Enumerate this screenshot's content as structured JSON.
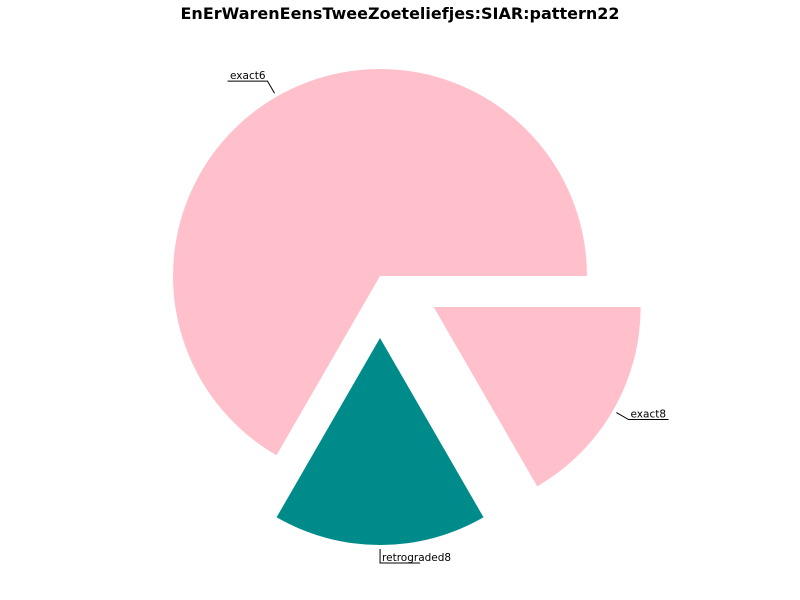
{
  "chart_data": {
    "type": "pie",
    "title": "EnErWarenEensTweeZoeteliefjes:SIAR:pattern22",
    "slices": [
      {
        "label": "exact6",
        "value": 66.67,
        "color": "#ffc0cb",
        "exploded": false
      },
      {
        "label": "exact8",
        "value": 16.67,
        "color": "#ffc0cb",
        "exploded": true
      },
      {
        "label": "retrograded8",
        "value": 16.66,
        "color": "#008b8b",
        "exploded": true
      }
    ],
    "legend": "none",
    "grid": false
  }
}
